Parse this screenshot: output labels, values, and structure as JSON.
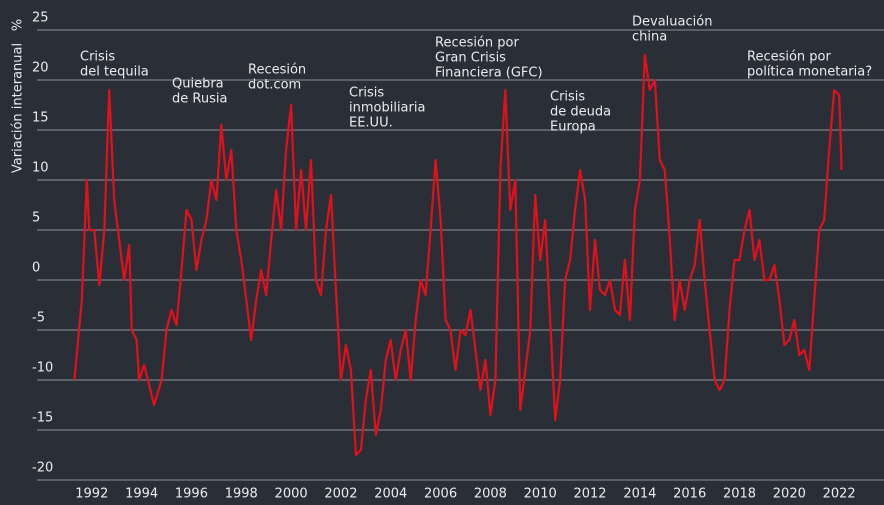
{
  "chart_data": {
    "type": "line",
    "y_label": "Variación interanual",
    "y_unit": "%",
    "xlim": [
      1989.8,
      2023.8
    ],
    "xticks": [
      1992,
      1994,
      1996,
      1998,
      2000,
      2002,
      2004,
      2006,
      2008,
      2010,
      2012,
      2014,
      2016,
      2018,
      2020,
      2022
    ],
    "ylim": [
      -20,
      25
    ],
    "yticks": [
      25,
      20,
      15,
      10,
      5,
      0,
      -5,
      -10,
      -15,
      -20
    ],
    "grid": true,
    "annotations": [
      [
        "Crisis",
        "del tequila"
      ],
      [
        "Quiebra",
        "de Rusia"
      ],
      [
        "Recesión",
        "dot.com"
      ],
      [
        "Crisis",
        "inmobiliaria",
        "EE.UU."
      ],
      [
        "Recesión por",
        "Gran Crisis",
        "Financiera (GFC)"
      ],
      [
        "Crisis",
        "de deuda",
        "Europa"
      ],
      [
        "Devaluación",
        "china"
      ],
      [
        "Recesión por",
        "política monetaria?"
      ]
    ],
    "series": [
      {
        "color": "#e3101c",
        "x": [
          1991.3,
          1991.6,
          1991.8,
          1991.9,
          1992.1,
          1992.3,
          1992.5,
          1992.7,
          1992.9,
          1993.1,
          1993.3,
          1993.5,
          1993.6,
          1993.8,
          1993.9,
          1994.1,
          1994.3,
          1994.5,
          1994.8,
          1995.0,
          1995.2,
          1995.4,
          1995.6,
          1995.8,
          1996.0,
          1996.2,
          1996.4,
          1996.6,
          1996.8,
          1997.0,
          1997.2,
          1997.4,
          1997.6,
          1997.8,
          1998.0,
          1998.2,
          1998.4,
          1998.6,
          1998.8,
          1999.0,
          1999.2,
          1999.4,
          1999.6,
          1999.8,
          2000.0,
          2000.2,
          2000.4,
          2000.6,
          2000.8,
          2001.0,
          2001.2,
          2001.4,
          2001.6,
          2001.8,
          2002.0,
          2002.2,
          2002.4,
          2002.6,
          2002.8,
          2003.0,
          2003.2,
          2003.4,
          2003.6,
          2003.8,
          2004.0,
          2004.2,
          2004.4,
          2004.6,
          2004.8,
          2005.0,
          2005.2,
          2005.4,
          2005.6,
          2005.8,
          2006.0,
          2006.2,
          2006.4,
          2006.6,
          2006.8,
          2007.0,
          2007.2,
          2007.4,
          2007.6,
          2007.8,
          2008.0,
          2008.2,
          2008.4,
          2008.6,
          2008.8,
          2009.0,
          2009.2,
          2009.4,
          2009.6,
          2009.8,
          2010.0,
          2010.2,
          2010.4,
          2010.6,
          2010.8,
          2011.0,
          2011.2,
          2011.4,
          2011.6,
          2011.8,
          2012.0,
          2012.2,
          2012.4,
          2012.6,
          2012.8,
          2013.0,
          2013.2,
          2013.4,
          2013.6,
          2013.8,
          2014.0,
          2014.2,
          2014.4,
          2014.6,
          2014.8,
          2015.0,
          2015.2,
          2015.4,
          2015.6,
          2015.8,
          2016.0,
          2016.2,
          2016.4,
          2016.6,
          2016.8,
          2017.0,
          2017.2,
          2017.4,
          2017.6,
          2017.8,
          2018.0,
          2018.2,
          2018.4,
          2018.6,
          2018.8,
          2019.0,
          2019.2,
          2019.4,
          2019.6,
          2019.8,
          2020.0,
          2020.2,
          2020.4,
          2020.6,
          2020.8,
          2021.0,
          2021.2,
          2021.4,
          2021.6,
          2021.8,
          2022.0,
          2022.1
        ],
        "values": [
          -10,
          -2,
          10,
          5,
          5,
          -0.5,
          5,
          19,
          8,
          4,
          0,
          3.5,
          -5,
          -6,
          -10,
          -8.5,
          -10.5,
          -12.5,
          -10,
          -5,
          -3,
          -4.5,
          1,
          7,
          6,
          1,
          4,
          6,
          10,
          8,
          15.5,
          10,
          13,
          5,
          2,
          -2,
          -6,
          -2,
          1,
          -1.5,
          4,
          9,
          5,
          13,
          17.5,
          5,
          11,
          5,
          12,
          0,
          -1.5,
          5,
          8.5,
          -1,
          -10,
          -6.5,
          -9,
          -17.5,
          -17,
          -12,
          -9,
          -15.5,
          -13,
          -8,
          -6,
          -10,
          -7,
          -5,
          -10,
          -4,
          0,
          -1.5,
          5,
          12,
          6,
          -4,
          -5,
          -9,
          -5,
          -5.5,
          -3,
          -7,
          -11,
          -8,
          -13.5,
          -10,
          11,
          19,
          7,
          10,
          -13,
          -9,
          -5,
          8.5,
          2,
          6,
          -4,
          -14,
          -10,
          0,
          2,
          7,
          11,
          8,
          -3,
          4,
          -1,
          -1.5,
          0,
          -3,
          -3.5,
          2,
          -4,
          7,
          10,
          22.5,
          19,
          20,
          12,
          11,
          4,
          -4,
          0,
          -3,
          0,
          1.5,
          6,
          0,
          -5,
          -10,
          -11,
          -10,
          -3,
          2,
          2,
          5,
          7,
          2,
          4,
          0,
          0,
          1.5,
          -2,
          -6.5,
          -6,
          -4,
          -7.5,
          -7,
          -9,
          -2,
          5,
          6,
          13,
          19,
          18.5,
          11
        ]
      }
    ]
  }
}
